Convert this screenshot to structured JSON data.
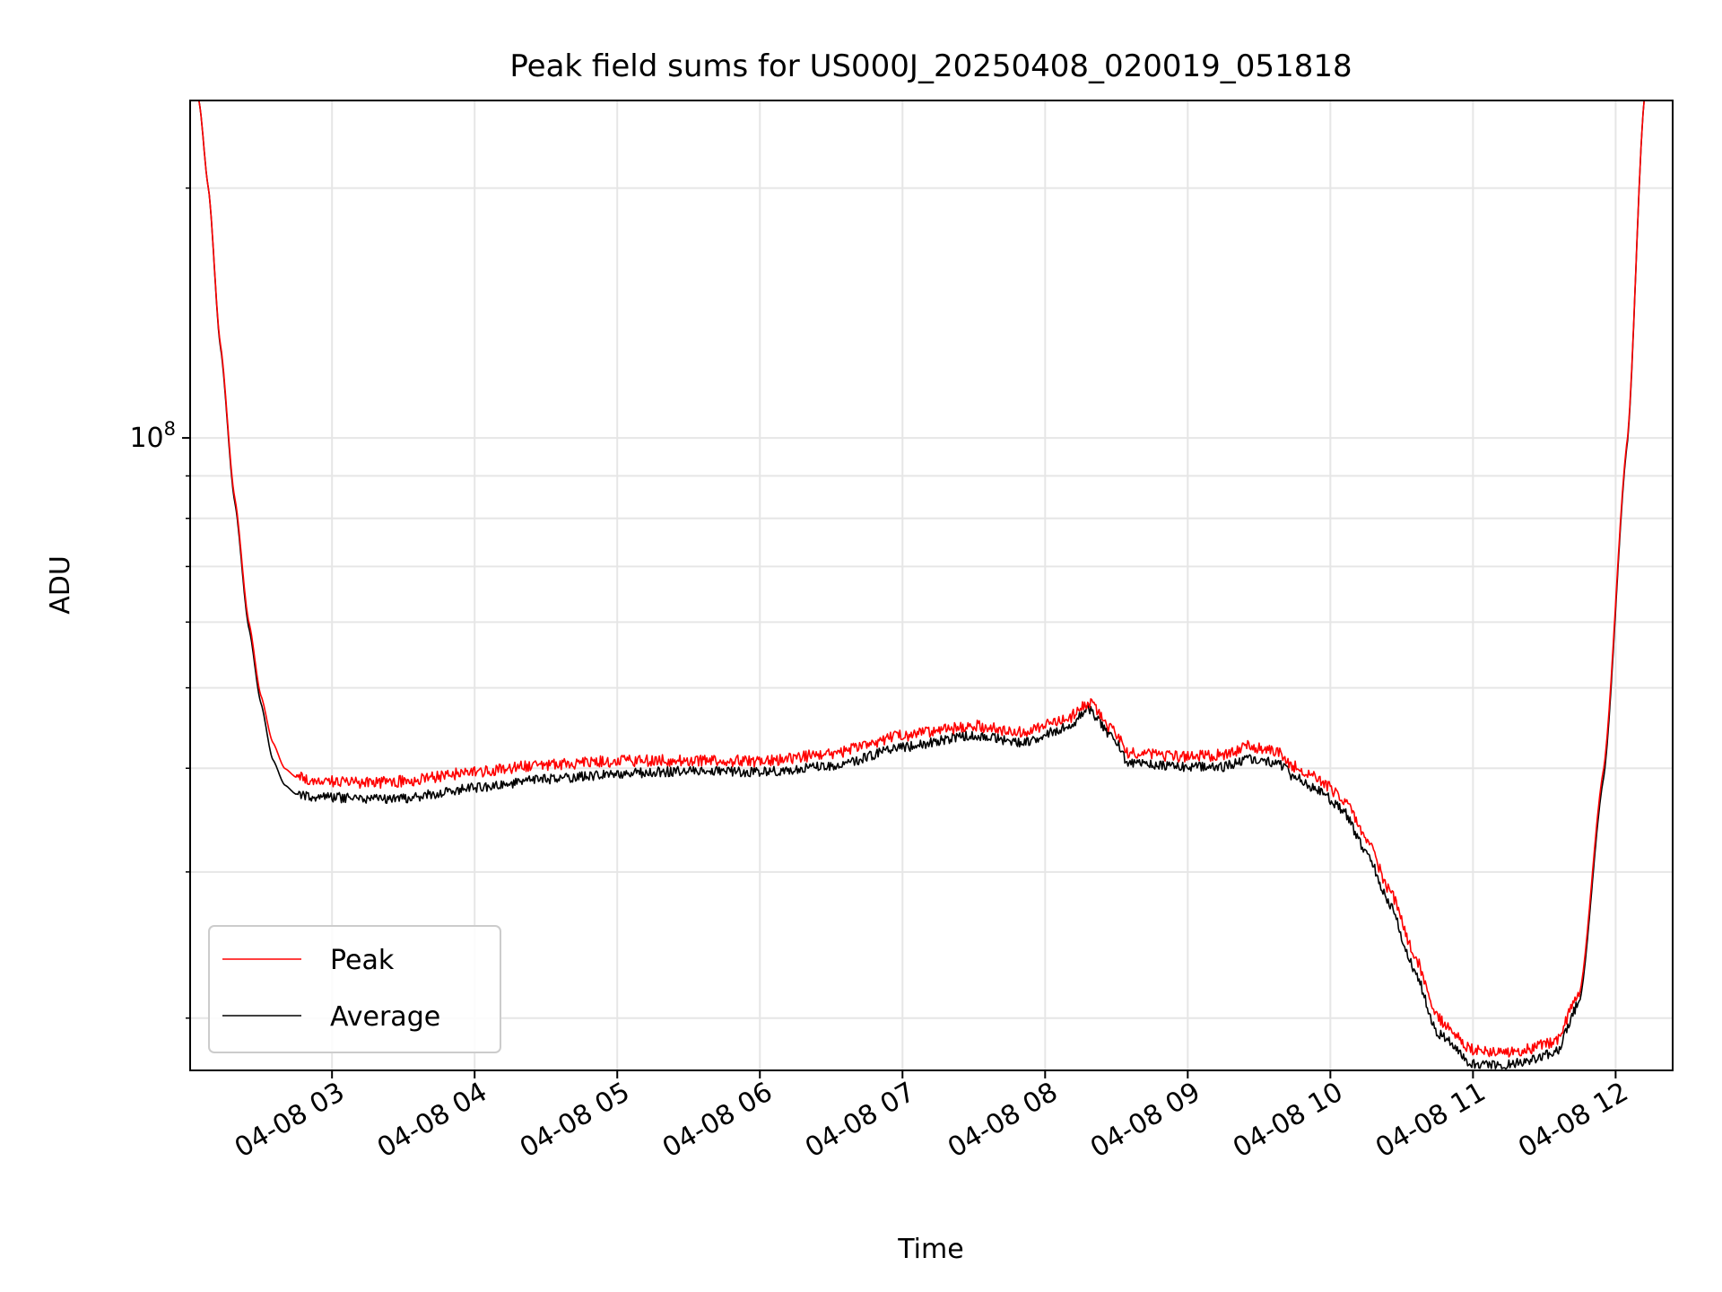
{
  "chart_data": {
    "type": "line",
    "title": "Peak field sums for US000J_20250408_020019_051818",
    "xlabel": "Time",
    "ylabel": "ADU",
    "yscale": "log",
    "grid": true,
    "legend_position": "lower-left",
    "x_ticks": [
      "04-08 03",
      "04-08 04",
      "04-08 05",
      "04-08 06",
      "04-08 07",
      "04-08 08",
      "04-08 09",
      "04-08 10",
      "04-08 11",
      "04-08 12"
    ],
    "y_major_ticks": [
      {
        "value": 100000000,
        "label": "10",
        "exponent": "8"
      }
    ],
    "y_minor_ticks": [
      20000000,
      30000000,
      40000000,
      50000000,
      60000000,
      70000000,
      80000000,
      90000000,
      200000000
    ],
    "xlim": [
      "2025-04-08T02:00:19",
      "2025-04-08T12:24:00"
    ],
    "ylim": [
      17300000,
      255000000
    ],
    "x": [
      "2025-04-08T02:04",
      "2025-04-08T02:08",
      "2025-04-08T02:13",
      "2025-04-08T02:19",
      "2025-04-08T02:25",
      "2025-04-08T02:30",
      "2025-04-08T02:35",
      "2025-04-08T02:40",
      "2025-04-08T02:45",
      "2025-04-08T02:50",
      "2025-04-08T03:00",
      "2025-04-08T03:15",
      "2025-04-08T03:30",
      "2025-04-08T04:00",
      "2025-04-08T04:30",
      "2025-04-08T05:00",
      "2025-04-08T05:30",
      "2025-04-08T06:00",
      "2025-04-08T06:30",
      "2025-04-08T07:00",
      "2025-04-08T07:30",
      "2025-04-08T07:50",
      "2025-04-08T08:10",
      "2025-04-08T08:18",
      "2025-04-08T08:30",
      "2025-04-08T08:35",
      "2025-04-08T09:00",
      "2025-04-08T09:15",
      "2025-04-08T09:25",
      "2025-04-08T09:38",
      "2025-04-08T09:45",
      "2025-04-08T09:55",
      "2025-04-08T10:05",
      "2025-04-08T10:15",
      "2025-04-08T10:25",
      "2025-04-08T10:35",
      "2025-04-08T10:45",
      "2025-04-08T11:00",
      "2025-04-08T11:15",
      "2025-04-08T11:25",
      "2025-04-08T11:35",
      "2025-04-08T11:45",
      "2025-04-08T11:55",
      "2025-04-08T12:05",
      "2025-04-08T12:12"
    ],
    "series": [
      {
        "name": "Peak",
        "color": "#ff0000",
        "values": [
          255000000,
          200000000,
          130000000,
          85000000,
          60000000,
          49000000,
          43000000,
          40000000,
          39000000,
          38800000,
          38600000,
          38400000,
          38600000,
          39600000,
          40400000,
          40800000,
          40900000,
          40800000,
          41600000,
          43800000,
          45000000,
          44200000,
          46000000,
          48000000,
          44000000,
          41700000,
          41300000,
          41500000,
          42500000,
          41800000,
          40200000,
          38800000,
          36900000,
          33000000,
          28500000,
          24000000,
          20000000,
          18300000,
          18200000,
          18400000,
          18800000,
          21500000,
          40000000,
          100000000,
          255000000
        ]
      },
      {
        "name": "Average",
        "color": "#000000",
        "values": [
          255000000,
          200000000,
          129000000,
          84000000,
          59000000,
          48000000,
          41000000,
          38200000,
          37200000,
          37000000,
          36900000,
          36700000,
          36800000,
          37900000,
          38800000,
          39400000,
          39700000,
          39600000,
          40200000,
          42400000,
          43800000,
          43000000,
          44800000,
          47200000,
          43000000,
          40500000,
          40100000,
          40200000,
          41000000,
          40600000,
          39000000,
          37600000,
          35700000,
          31800000,
          27400000,
          23000000,
          19200000,
          17600000,
          17600000,
          17800000,
          18200000,
          21000000,
          39000000,
          99000000,
          255000000
        ]
      }
    ]
  }
}
